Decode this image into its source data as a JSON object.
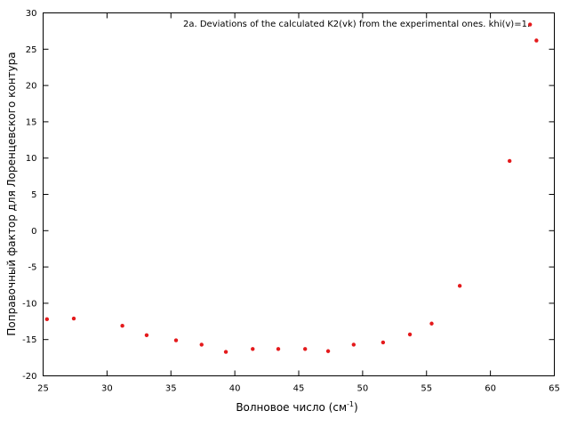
{
  "chart_data": {
    "type": "scatter",
    "title": "2a. Deviations of the calculated K2(vk) from the experimental ones. khi(v)=1.",
    "xlabel_main": "Волновое число (см",
    "xlabel_sup": "-1",
    "xlabel_end": ")",
    "ylabel": "Поправочный фактор для Лоренцевского контура",
    "xlim": [
      25,
      65
    ],
    "ylim": [
      -20,
      30
    ],
    "x_ticks": [
      25,
      30,
      35,
      40,
      45,
      50,
      55,
      60,
      65
    ],
    "y_ticks": [
      -20,
      -15,
      -10,
      -5,
      0,
      5,
      10,
      15,
      20,
      25,
      30
    ],
    "marker_color": "#e41a1c",
    "grid": false,
    "series": [
      {
        "x": [
          25.3,
          27.4,
          31.2,
          33.1,
          35.4,
          37.4,
          39.3,
          41.4,
          43.4,
          45.5,
          47.3,
          49.3,
          51.6,
          53.7,
          55.4,
          57.6,
          61.5,
          63.1,
          63.6
        ],
        "y": [
          -12.2,
          -12.1,
          -13.1,
          -14.4,
          -15.1,
          -15.7,
          -16.7,
          -16.3,
          -16.3,
          -16.3,
          -16.6,
          -15.7,
          -15.4,
          -14.3,
          -12.8,
          -7.6,
          9.6,
          28.4,
          26.2
        ]
      }
    ]
  }
}
